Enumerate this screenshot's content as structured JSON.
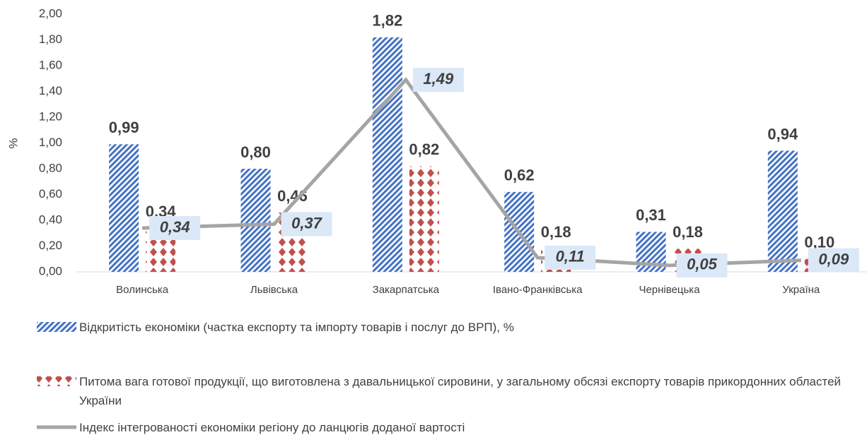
{
  "chart_data": {
    "type": "bar",
    "y_label": "%",
    "categories": [
      "Волинська",
      "Львівська",
      "Закарпатська",
      "Івано-Франківська",
      "Чернівецька",
      "Україна"
    ],
    "series": [
      {
        "name": "Відкритість економіки (частка експорту та імпорту товарів і послуг до ВРП), %",
        "kind": "bar",
        "color": "#4472c4",
        "values": [
          0.99,
          0.8,
          1.82,
          0.62,
          0.31,
          0.94
        ],
        "value_labels": [
          "0,99",
          "0,80",
          "1,82",
          "0,62",
          "0,31",
          "0,94"
        ]
      },
      {
        "name": "Питома вага готової продукції, що виготовлена з давальницької сировини, у загальному обсязі експорту товарів прикордонних областей України",
        "kind": "bar",
        "color": "#c0504d",
        "values": [
          0.34,
          0.46,
          0.82,
          0.18,
          0.18,
          0.1
        ],
        "value_labels": [
          "0,34",
          "0,46",
          "0,82",
          "0,18",
          "0,18",
          "0,10"
        ]
      },
      {
        "name": "Індекс інтегрованості економіки регіону до ланцюгів доданої вартості",
        "kind": "line",
        "color": "#a5a5a5",
        "values": [
          0.34,
          0.37,
          1.49,
          0.11,
          0.05,
          0.09
        ],
        "value_labels": [
          "0,34",
          "0,37",
          "1,49",
          "0,11",
          "0,05",
          "0,09"
        ]
      }
    ],
    "ylim": [
      0,
      2
    ],
    "yticks": [
      {
        "value": 0,
        "label": "0,00"
      },
      {
        "value": 0.2,
        "label": "0,20"
      },
      {
        "value": 0.4,
        "label": "0,40"
      },
      {
        "value": 0.6,
        "label": "0,60"
      },
      {
        "value": 0.8,
        "label": "0,80"
      },
      {
        "value": 1,
        "label": "1,00"
      },
      {
        "value": 1.2,
        "label": "1,20"
      },
      {
        "value": 1.4,
        "label": "1,40"
      },
      {
        "value": 1.6,
        "label": "1,60"
      },
      {
        "value": 1.8,
        "label": "1,80"
      },
      {
        "value": 2,
        "label": "2,00"
      }
    ],
    "grid": false
  }
}
